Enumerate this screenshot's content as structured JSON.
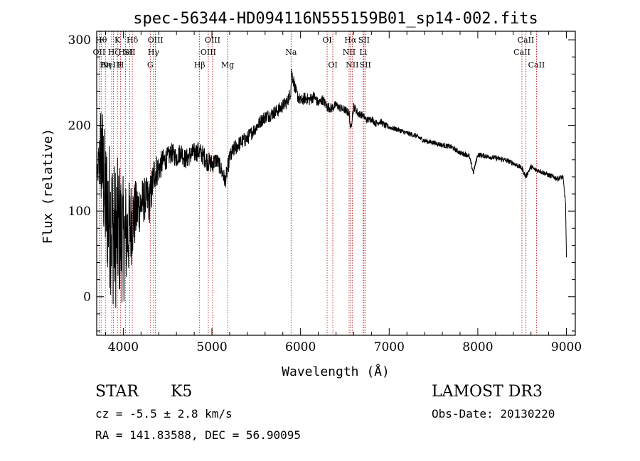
{
  "chart_data": {
    "type": "line",
    "title": "spec-56344-HD094116N555159B01_sp14-002.fits",
    "xlabel": "Wavelength (Å)",
    "ylabel": "Flux (relative)",
    "xlim": [
      3700,
      9100
    ],
    "ylim": [
      -45,
      310
    ],
    "xticks": [
      4000,
      5000,
      6000,
      7000,
      8000,
      9000
    ],
    "yticks": [
      0,
      100,
      200,
      300
    ],
    "grid": false,
    "series": [
      {
        "name": "spectrum",
        "color": "#000000",
        "x": [
          3700,
          3750,
          3800,
          3850,
          3900,
          3950,
          4000,
          4050,
          4100,
          4150,
          4200,
          4250,
          4300,
          4350,
          4400,
          4450,
          4500,
          4550,
          4600,
          4650,
          4700,
          4750,
          4800,
          4850,
          4900,
          4950,
          5000,
          5050,
          5100,
          5150,
          5200,
          5250,
          5300,
          5350,
          5400,
          5450,
          5500,
          5550,
          5600,
          5650,
          5700,
          5750,
          5800,
          5850,
          5890,
          5900,
          5950,
          6000,
          6050,
          6100,
          6150,
          6200,
          6250,
          6300,
          6350,
          6400,
          6450,
          6500,
          6550,
          6563,
          6600,
          6650,
          6700,
          6750,
          6800,
          6850,
          6900,
          6950,
          7000,
          7100,
          7200,
          7300,
          7400,
          7500,
          7600,
          7700,
          7800,
          7900,
          7950,
          8000,
          8100,
          8200,
          8300,
          8400,
          8500,
          8540,
          8600,
          8650,
          8700,
          8800,
          8900,
          8960,
          8990,
          9000
        ],
        "y": [
          140,
          170,
          110,
          95,
          70,
          80,
          65,
          75,
          90,
          100,
          108,
          115,
          112,
          145,
          150,
          158,
          163,
          168,
          162,
          170,
          160,
          165,
          168,
          170,
          165,
          158,
          155,
          160,
          150,
          135,
          162,
          172,
          178,
          182,
          185,
          192,
          198,
          205,
          210,
          212,
          215,
          218,
          223,
          228,
          240,
          262,
          238,
          228,
          232,
          230,
          234,
          226,
          230,
          222,
          220,
          224,
          220,
          218,
          214,
          195,
          222,
          214,
          212,
          206,
          208,
          202,
          205,
          200,
          198,
          195,
          191,
          188,
          182,
          180,
          177,
          175,
          168,
          165,
          145,
          166,
          164,
          162,
          160,
          156,
          150,
          140,
          152,
          148,
          147,
          142,
          138,
          140,
          110,
          45
        ],
        "noise": [
          0,
          70,
          80,
          90,
          90,
          85,
          75,
          60,
          50,
          35,
          30,
          25,
          28,
          22,
          18,
          15,
          12,
          12,
          12,
          12,
          12,
          12,
          12,
          12,
          12,
          12,
          12,
          10,
          10,
          10,
          10,
          10,
          9,
          9,
          9,
          8,
          8,
          8,
          8,
          8,
          8,
          8,
          8,
          8,
          8,
          8,
          8,
          7,
          7,
          7,
          7,
          6,
          6,
          6,
          6,
          5,
          5,
          5,
          5,
          5,
          5,
          5,
          4,
          4,
          4,
          4,
          4,
          4,
          3,
          3,
          3,
          3,
          3,
          3,
          3,
          3,
          3,
          3,
          3,
          3,
          3,
          3,
          3,
          3,
          3,
          3,
          3,
          3,
          3,
          3,
          3,
          3,
          3,
          3
        ]
      }
    ],
    "lines": [
      {
        "x": 3727,
        "labels": [
          "OII"
        ],
        "row": 1
      },
      {
        "x": 3750,
        "labels": [
          "Hθ"
        ],
        "row": 0
      },
      {
        "x": 3798,
        "labels": [
          "Hη"
        ],
        "row": 2
      },
      {
        "x": 3869,
        "labels": [
          "NeIII"
        ],
        "row": 2
      },
      {
        "x": 3889,
        "labels": [
          "Hζ"
        ],
        "row": 1
      },
      {
        "x": 3934,
        "labels": [
          "K"
        ],
        "row": 0
      },
      {
        "x": 3969,
        "labels": [
          "H"
        ],
        "row": 2
      },
      {
        "x": 4026,
        "labels": [
          "HeI"
        ],
        "row": 1
      },
      {
        "x": 4072,
        "labels": [
          "SII"
        ],
        "row": 1
      },
      {
        "x": 4102,
        "labels": [
          "Hδ"
        ],
        "row": 0
      },
      {
        "x": 4304,
        "labels": [
          "G"
        ],
        "row": 2
      },
      {
        "x": 4341,
        "labels": [
          "Hγ"
        ],
        "row": 1
      },
      {
        "x": 4363,
        "labels": [
          "OIII"
        ],
        "row": 0
      },
      {
        "x": 4861,
        "labels": [
          "Hβ"
        ],
        "row": 2
      },
      {
        "x": 4959,
        "labels": [
          "OIII"
        ],
        "row": 1
      },
      {
        "x": 5007,
        "labels": [
          "OIII"
        ],
        "row": 0
      },
      {
        "x": 5177,
        "labels": [
          "Mg"
        ],
        "row": 2
      },
      {
        "x": 5893,
        "labels": [
          "Na"
        ],
        "row": 1
      },
      {
        "x": 6300,
        "labels": [
          "OI"
        ],
        "row": 0
      },
      {
        "x": 6364,
        "labels": [
          "OI"
        ],
        "row": 2
      },
      {
        "x": 6548,
        "labels": [
          "NII"
        ],
        "row": 1
      },
      {
        "x": 6563,
        "labels": [
          "Hα"
        ],
        "row": 0
      },
      {
        "x": 6583,
        "labels": [
          "NII"
        ],
        "row": 2
      },
      {
        "x": 6707,
        "labels": [
          "Li"
        ],
        "row": 1
      },
      {
        "x": 6716,
        "labels": [
          "SII"
        ],
        "row": 0
      },
      {
        "x": 6731,
        "labels": [
          "SII"
        ],
        "row": 2
      },
      {
        "x": 8498,
        "labels": [
          "CaII"
        ],
        "row": 1
      },
      {
        "x": 8542,
        "labels": [
          "CaII"
        ],
        "row": 0
      },
      {
        "x": 8662,
        "labels": [
          "CaII"
        ],
        "row": 2
      }
    ]
  },
  "info": {
    "object_class": "STAR",
    "subclass": "K5",
    "survey": "LAMOST DR3",
    "redshift": "cz = -5.5 ± 2.8 km/s",
    "obs_date": "Obs-Date: 20130220",
    "coords": "RA = 141.83588, DEC =  56.90095"
  }
}
